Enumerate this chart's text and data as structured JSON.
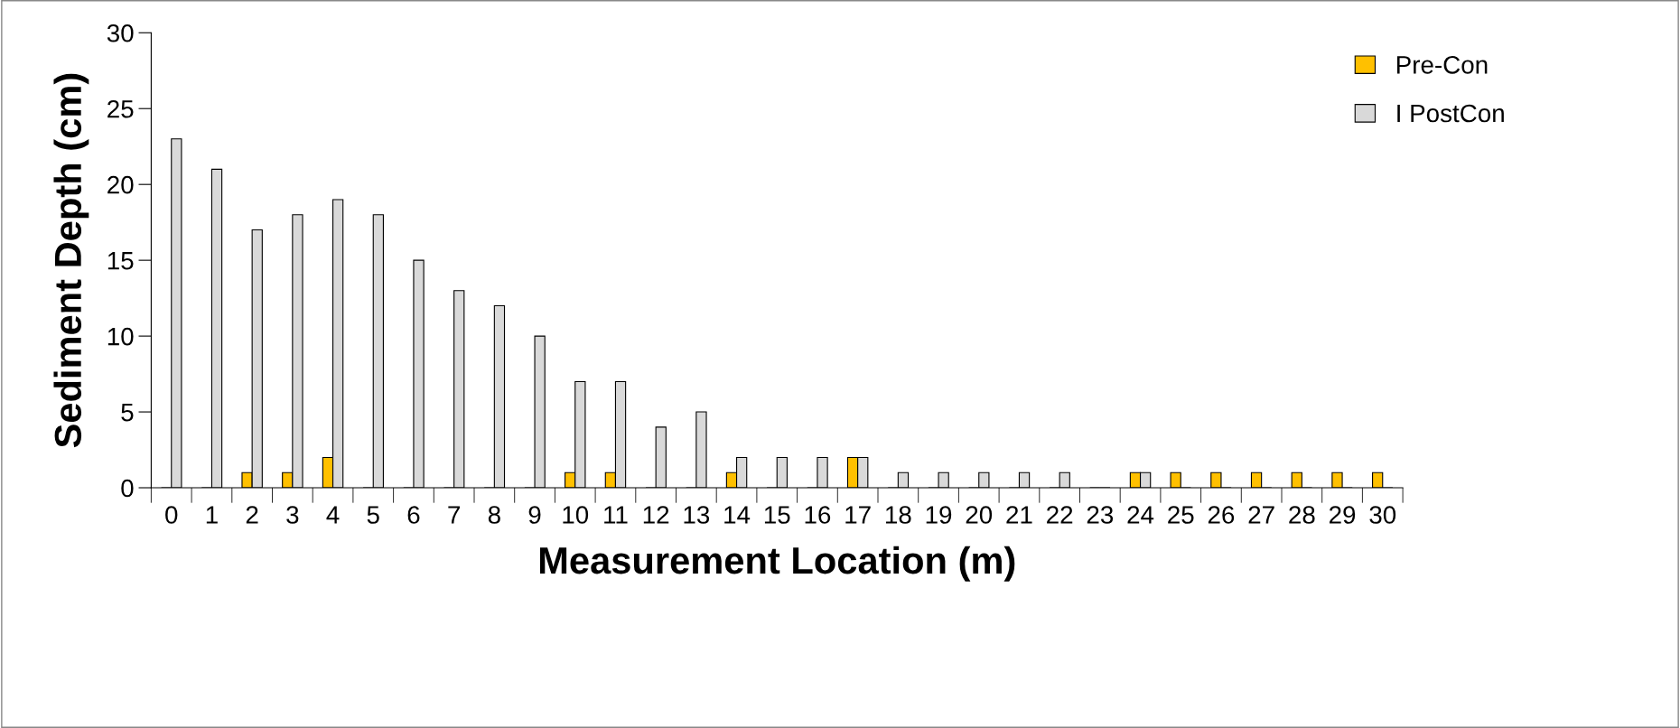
{
  "chart_data": {
    "type": "bar",
    "xlabel": "Measurement Location (m)",
    "ylabel": "Sediment Depth (cm)",
    "categories": [
      "0",
      "1",
      "2",
      "3",
      "4",
      "5",
      "6",
      "7",
      "8",
      "9",
      "10",
      "11",
      "12",
      "13",
      "14",
      "15",
      "16",
      "17",
      "18",
      "19",
      "20",
      "21",
      "22",
      "23",
      "24",
      "25",
      "26",
      "27",
      "28",
      "29",
      "30"
    ],
    "series": [
      {
        "name": "Pre-Con",
        "color": "#ffc000",
        "values": [
          0,
          0,
          1,
          1,
          2,
          0,
          0,
          0,
          0,
          0,
          1,
          1,
          0,
          0,
          1,
          0,
          0,
          2,
          0,
          0,
          0,
          0,
          0,
          0,
          1,
          1,
          1,
          1,
          1,
          1,
          1
        ]
      },
      {
        "name": "I PostCon",
        "color": "#d9d9d9",
        "values": [
          23,
          21,
          17,
          18,
          19,
          18,
          15,
          13,
          12,
          10,
          7,
          7,
          4,
          5,
          2,
          2,
          2,
          2,
          1,
          1,
          1,
          1,
          1,
          0,
          1,
          0,
          0,
          0,
          0,
          0,
          0
        ]
      }
    ],
    "ylim": [
      0,
      30
    ],
    "yticks": [
      0,
      5,
      10,
      15,
      20,
      25,
      30
    ],
    "grid": false,
    "legend": "top right"
  }
}
